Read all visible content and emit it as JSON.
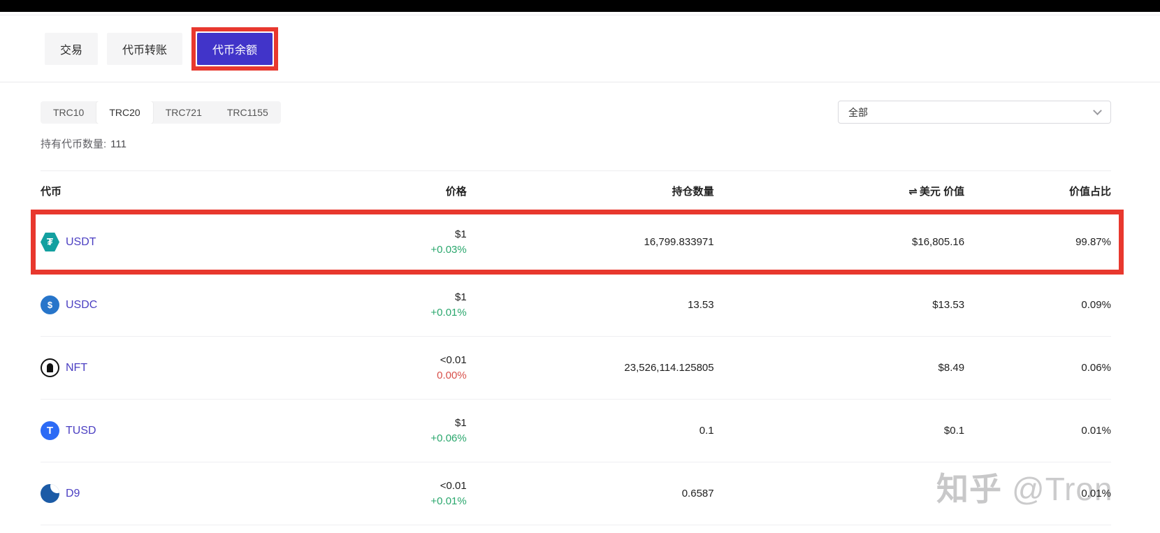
{
  "topTabs": {
    "items": [
      {
        "label": "交易",
        "active": false
      },
      {
        "label": "代币转账",
        "active": false
      },
      {
        "label": "代币余额",
        "active": true
      }
    ]
  },
  "filters": {
    "items": [
      {
        "label": "TRC10",
        "active": false
      },
      {
        "label": "TRC20",
        "active": true
      },
      {
        "label": "TRC721",
        "active": false
      },
      {
        "label": "TRC1155",
        "active": false
      }
    ]
  },
  "dropdown": {
    "value": "全部"
  },
  "holdings": {
    "label": "持有代币数量:",
    "count": "111"
  },
  "table": {
    "headers": {
      "token": "代币",
      "price": "价格",
      "amount": "持仓数量",
      "usd_icon": "⇌",
      "usd": "美元 价值",
      "ratio": "价值占比"
    },
    "rows": [
      {
        "name": "USDT",
        "icon": "usdt-icon",
        "price": "$1",
        "change": "+0.03%",
        "change_type": "positive",
        "amount": "16,799.833971",
        "usd_value": "$16,805.16",
        "ratio": "99.87%",
        "highlighted": true
      },
      {
        "name": "USDC",
        "icon": "usdc-icon",
        "price": "$1",
        "change": "+0.01%",
        "change_type": "positive",
        "amount": "13.53",
        "usd_value": "$13.53",
        "ratio": "0.09%",
        "highlighted": false
      },
      {
        "name": "NFT",
        "icon": "nft-icon",
        "price": "<0.01",
        "change": "0.00%",
        "change_type": "negative",
        "amount": "23,526,114.125805",
        "usd_value": "$8.49",
        "ratio": "0.06%",
        "highlighted": false
      },
      {
        "name": "TUSD",
        "icon": "tusd-icon",
        "price": "$1",
        "change": "+0.06%",
        "change_type": "positive",
        "amount": "0.1",
        "usd_value": "$0.1",
        "ratio": "0.01%",
        "highlighted": false
      },
      {
        "name": "D9",
        "icon": "d9-icon",
        "price": "<0.01",
        "change": "+0.01%",
        "change_type": "positive",
        "amount": "0.6587",
        "usd_value": "",
        "ratio": "0.01%",
        "highlighted": false
      }
    ]
  },
  "watermark": {
    "text_cn": "知乎",
    "text_en": "@Tron"
  },
  "colors": {
    "accent_purple": "#4134c9",
    "annotation_red": "#e8382e",
    "positive_green": "#2aa76d",
    "negative_red": "#d8504a",
    "token_link": "#4b3fc2",
    "usdt_teal": "#13a0a0",
    "usdc_blue": "#2775ca",
    "tusd_blue": "#2c6bf5",
    "d9_blue": "#1c5ba6"
  }
}
